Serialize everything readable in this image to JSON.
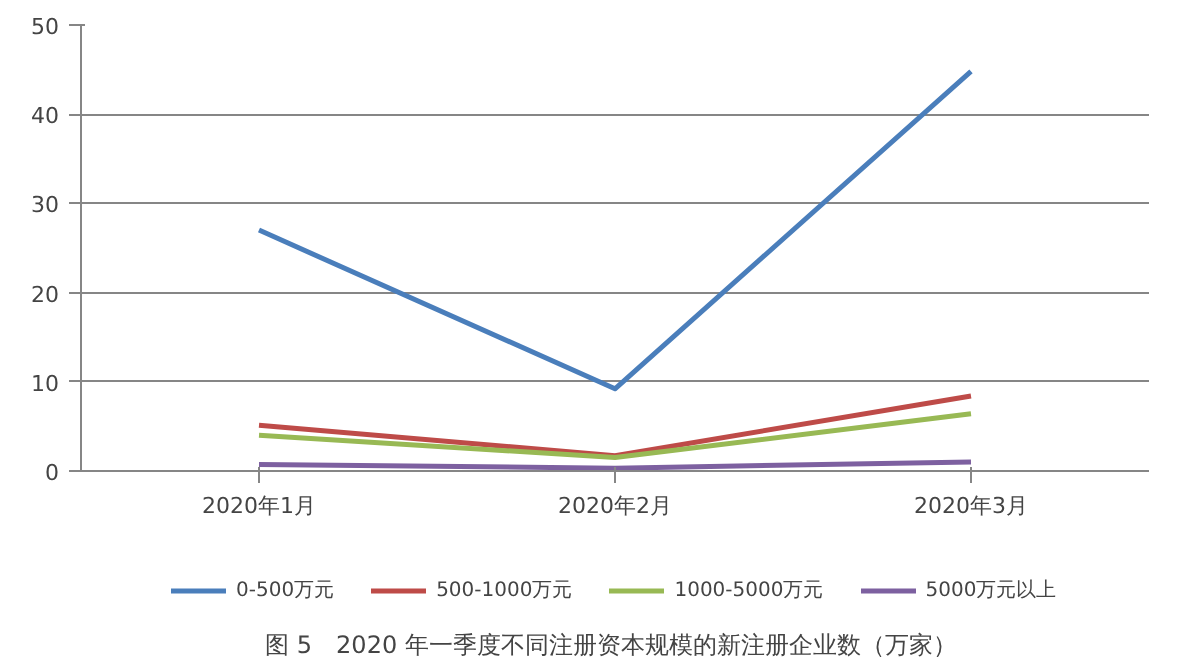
{
  "chart_data": {
    "type": "line",
    "categories": [
      "2020年1月",
      "2020年2月",
      "2020年3月"
    ],
    "series": [
      {
        "name": "0-500万元",
        "color": "#4a7ebb",
        "values": [
          27,
          9.2,
          44.8
        ]
      },
      {
        "name": "500-1000万元",
        "color": "#be4b48",
        "values": [
          5.1,
          1.7,
          8.4
        ]
      },
      {
        "name": "1000-5000万元",
        "color": "#98b954",
        "values": [
          4.0,
          1.5,
          6.4
        ]
      },
      {
        "name": "5000万元以上",
        "color": "#7d60a0",
        "values": [
          0.7,
          0.3,
          1.0
        ]
      }
    ],
    "ylim": [
      0,
      50
    ],
    "yticks": [
      0,
      10,
      20,
      30,
      40,
      50
    ],
    "grid": "y",
    "legend": "bottom",
    "marker": "none",
    "line_style": "solid",
    "annotations": [
      "图 5　2020 年一季度不同注册资本规模的新注册企业数（万家）"
    ]
  }
}
